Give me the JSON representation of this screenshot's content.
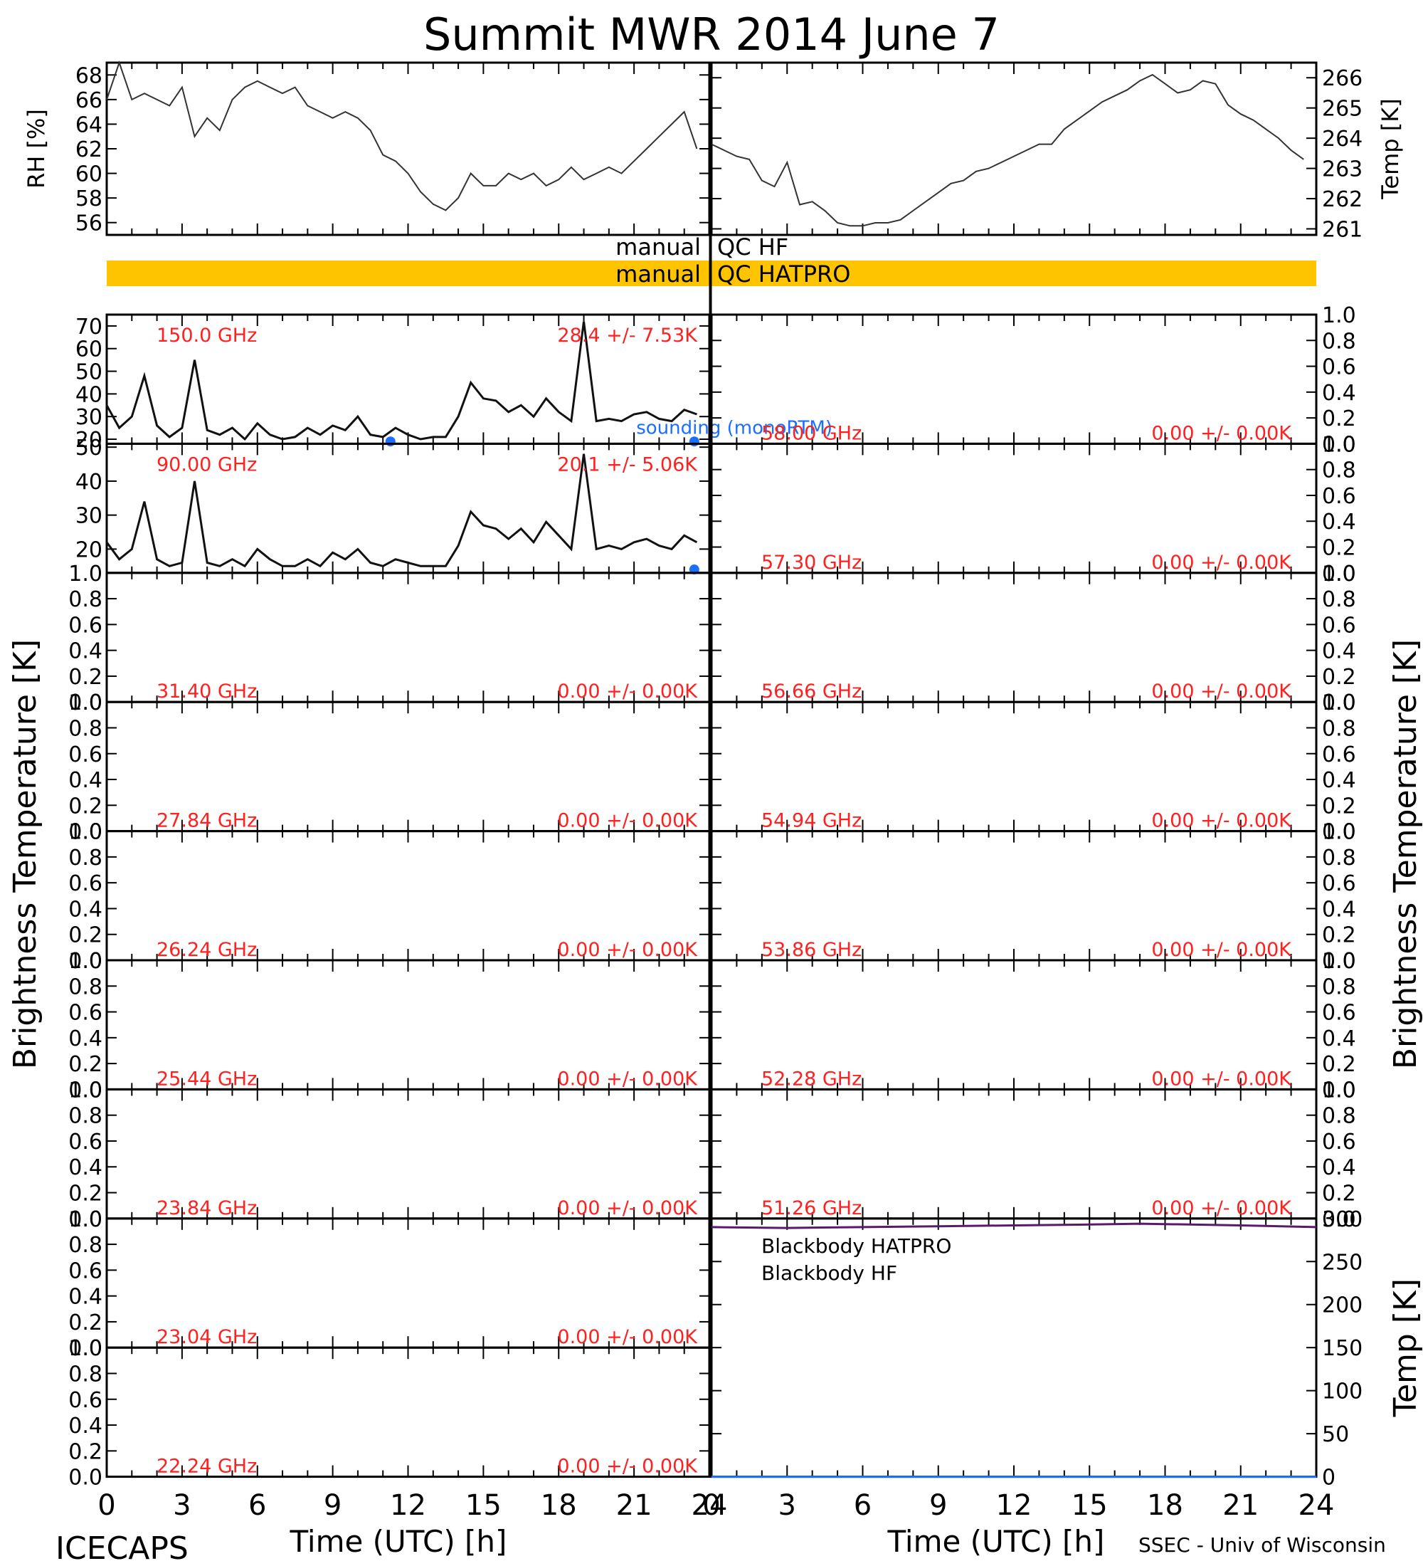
{
  "chart_data": {
    "title": "Summit MWR 2014 June  7",
    "footer_left": "ICECAPS",
    "footer_right": "SSEC - Univ of Wisconsin",
    "x_label": "Time (UTC) [h]",
    "x_ticks": [
      "0",
      "3",
      "6",
      "9",
      "12",
      "15",
      "18",
      "21",
      "24"
    ],
    "left_ylabel": "Brightness Temperature [K]",
    "right_ylabel": "Brightness Temperature [K]",
    "met": {
      "rh": {
        "type": "line",
        "ylabel": "RH [%]",
        "ylim": [
          55,
          69
        ],
        "yticks": [
          "56",
          "58",
          "60",
          "62",
          "64",
          "66",
          "68"
        ],
        "x": [
          0,
          0.5,
          1,
          1.5,
          2,
          2.5,
          3,
          3.5,
          4,
          4.5,
          5,
          5.5,
          6,
          6.5,
          7,
          7.5,
          8,
          8.5,
          9,
          9.5,
          10,
          10.5,
          11,
          11.5,
          12,
          12.5,
          13,
          13.5,
          14,
          14.5,
          15,
          15.5,
          16,
          16.5,
          17,
          17.5,
          18,
          18.5,
          19,
          19.5,
          20,
          20.5,
          21,
          21.5,
          22,
          22.5,
          23,
          23.5
        ],
        "y": [
          66,
          69,
          66,
          66.5,
          66,
          65.5,
          67,
          63,
          64.5,
          63.5,
          66,
          67,
          67.5,
          67,
          66.5,
          67,
          65.5,
          65,
          64.5,
          65,
          64.5,
          63.5,
          61.5,
          61,
          60,
          58.5,
          57.5,
          57,
          58,
          60,
          59,
          59,
          60,
          59.5,
          60,
          59,
          59.5,
          60.5,
          59.5,
          60,
          60.5,
          60,
          61,
          62,
          63,
          64,
          65,
          62
        ]
      },
      "temp": {
        "type": "line",
        "ylabel": "Temp [K]",
        "ylim": [
          260.8,
          266.5
        ],
        "yticks": [
          "261",
          "262",
          "263",
          "264",
          "265",
          "266"
        ],
        "x": [
          0,
          0.5,
          1,
          1.5,
          2,
          2.5,
          3,
          3.5,
          4,
          4.5,
          5,
          5.5,
          6,
          6.5,
          7,
          7.5,
          8,
          8.5,
          9,
          9.5,
          10,
          10.5,
          11,
          11.5,
          12,
          12.5,
          13,
          13.5,
          14,
          14.5,
          15,
          15.5,
          16,
          16.5,
          17,
          17.5,
          18,
          18.5,
          19,
          19.5,
          20,
          20.5,
          21,
          21.5,
          22,
          22.5,
          23,
          23.5
        ],
        "y": [
          263.8,
          263.6,
          263.4,
          263.3,
          262.6,
          262.4,
          263.2,
          261.8,
          261.9,
          261.6,
          261.2,
          261.1,
          261.1,
          261.2,
          261.2,
          261.3,
          261.6,
          261.9,
          262.2,
          262.5,
          262.6,
          262.9,
          263.0,
          263.2,
          263.4,
          263.6,
          263.8,
          263.8,
          264.3,
          264.6,
          264.9,
          265.2,
          265.4,
          265.6,
          265.9,
          266.1,
          265.8,
          265.5,
          265.6,
          265.9,
          265.8,
          265.1,
          264.8,
          264.6,
          264.3,
          264.0,
          263.6,
          263.3
        ]
      }
    },
    "qc": {
      "hf_label": "manual  QC HF",
      "hatpro_label": "manual  QC HATPRO",
      "hatpro_color": "#ffc400"
    },
    "channels_left": [
      {
        "freq": "150.0 GHz",
        "stats": "28.4 +/-  7.53K",
        "ylim": [
          18,
          75
        ],
        "yticks": [
          "20",
          "30",
          "40",
          "50",
          "60",
          "70"
        ],
        "has_data": true,
        "x": [
          0,
          0.5,
          1,
          1.5,
          2,
          2.5,
          3,
          3.5,
          4,
          4.5,
          5,
          5.5,
          6,
          6.5,
          7,
          7.5,
          8,
          8.5,
          9,
          9.5,
          10,
          10.5,
          11,
          11.5,
          12,
          12.5,
          13,
          13.5,
          14,
          14.5,
          15,
          15.5,
          16,
          16.5,
          17,
          17.5,
          18,
          18.5,
          19,
          19.5,
          20,
          20.5,
          21,
          21.5,
          22,
          22.5,
          23,
          23.5
        ],
        "y": [
          35,
          25,
          30,
          48,
          26,
          21,
          25,
          55,
          24,
          22,
          25,
          20,
          27,
          22,
          20,
          21,
          25,
          22,
          26,
          24,
          30,
          22,
          21,
          25,
          22,
          20,
          21,
          21,
          30,
          45,
          38,
          37,
          32,
          35,
          30,
          38,
          32,
          28,
          72,
          28,
          29,
          28,
          31,
          32,
          29,
          28,
          33,
          31
        ],
        "model_label": "sounding (monoRTM)",
        "model_x": [
          11.3,
          23.4
        ],
        "model_y": [
          19,
          19
        ]
      },
      {
        "freq": "90.00 GHz",
        "stats": "20.1 +/-  5.06K",
        "ylim": [
          13,
          51
        ],
        "yticks": [
          "20",
          "30",
          "40",
          "50"
        ],
        "has_data": true,
        "x": [
          0,
          0.5,
          1,
          1.5,
          2,
          2.5,
          3,
          3.5,
          4,
          4.5,
          5,
          5.5,
          6,
          6.5,
          7,
          7.5,
          8,
          8.5,
          9,
          9.5,
          10,
          10.5,
          11,
          11.5,
          12,
          12.5,
          13,
          13.5,
          14,
          14.5,
          15,
          15.5,
          16,
          16.5,
          17,
          17.5,
          18,
          18.5,
          19,
          19.5,
          20,
          20.5,
          21,
          21.5,
          22,
          22.5,
          23,
          23.5
        ],
        "y": [
          22,
          17,
          20,
          34,
          17,
          15,
          16,
          40,
          16,
          15,
          17,
          15,
          20,
          17,
          15,
          15,
          17,
          15,
          19,
          17,
          20,
          16,
          15,
          17,
          16,
          15,
          15,
          15,
          21,
          31,
          27,
          26,
          23,
          26,
          22,
          28,
          24,
          20,
          48,
          20,
          21,
          20,
          22,
          23,
          21,
          20,
          24,
          22
        ],
        "model_x": [
          23.4
        ],
        "model_y": [
          14
        ]
      },
      {
        "freq": "31.40 GHz",
        "stats": "0.00 +/-  0.00K",
        "ylim": [
          0,
          1
        ],
        "yticks": [
          "0.0",
          "0.2",
          "0.4",
          "0.6",
          "0.8",
          "1.0"
        ],
        "has_data": false
      },
      {
        "freq": "27.84 GHz",
        "stats": "0.00 +/-  0.00K",
        "ylim": [
          0,
          1
        ],
        "yticks": [
          "0.0",
          "0.2",
          "0.4",
          "0.6",
          "0.8",
          "1.0"
        ],
        "has_data": false
      },
      {
        "freq": "26.24 GHz",
        "stats": "0.00 +/-  0.00K",
        "ylim": [
          0,
          1
        ],
        "yticks": [
          "0.0",
          "0.2",
          "0.4",
          "0.6",
          "0.8",
          "1.0"
        ],
        "has_data": false
      },
      {
        "freq": "25.44 GHz",
        "stats": "0.00 +/-  0.00K",
        "ylim": [
          0,
          1
        ],
        "yticks": [
          "0.0",
          "0.2",
          "0.4",
          "0.6",
          "0.8",
          "1.0"
        ],
        "has_data": false
      },
      {
        "freq": "23.84 GHz",
        "stats": "0.00 +/-  0.00K",
        "ylim": [
          0,
          1
        ],
        "yticks": [
          "0.0",
          "0.2",
          "0.4",
          "0.6",
          "0.8",
          "1.0"
        ],
        "has_data": false
      },
      {
        "freq": "23.04 GHz",
        "stats": "0.00 +/-  0.00K",
        "ylim": [
          0,
          1
        ],
        "yticks": [
          "0.0",
          "0.2",
          "0.4",
          "0.6",
          "0.8",
          "1.0"
        ],
        "has_data": false
      },
      {
        "freq": "22.24 GHz",
        "stats": "0.00 +/-  0.00K",
        "ylim": [
          0,
          1
        ],
        "yticks": [
          "0.0",
          "0.2",
          "0.4",
          "0.6",
          "0.8",
          "1.0"
        ],
        "has_data": false
      }
    ],
    "channels_right": [
      {
        "freq": "58.00 GHz",
        "stats": "0.00 +/-  0.00K",
        "ylim": [
          0,
          1
        ],
        "yticks": [
          "0.0",
          "0.2",
          "0.4",
          "0.6",
          "0.8",
          "1.0"
        ]
      },
      {
        "freq": "57.30 GHz",
        "stats": "0.00 +/-  0.00K",
        "ylim": [
          0,
          1
        ],
        "yticks": [
          "0.0",
          "0.2",
          "0.4",
          "0.6",
          "0.8",
          "1.0"
        ]
      },
      {
        "freq": "56.66 GHz",
        "stats": "0.00 +/-  0.00K",
        "ylim": [
          0,
          1
        ],
        "yticks": [
          "0.0",
          "0.2",
          "0.4",
          "0.6",
          "0.8",
          "1.0"
        ]
      },
      {
        "freq": "54.94 GHz",
        "stats": "0.00 +/-  0.00K",
        "ylim": [
          0,
          1
        ],
        "yticks": [
          "0.0",
          "0.2",
          "0.4",
          "0.6",
          "0.8",
          "1.0"
        ]
      },
      {
        "freq": "53.86 GHz",
        "stats": "0.00 +/-  0.00K",
        "ylim": [
          0,
          1
        ],
        "yticks": [
          "0.0",
          "0.2",
          "0.4",
          "0.6",
          "0.8",
          "1.0"
        ]
      },
      {
        "freq": "52.28 GHz",
        "stats": "0.00 +/-  0.00K",
        "ylim": [
          0,
          1
        ],
        "yticks": [
          "0.0",
          "0.2",
          "0.4",
          "0.6",
          "0.8",
          "1.0"
        ]
      },
      {
        "freq": "51.26 GHz",
        "stats": "0.00 +/-  0.00K",
        "ylim": [
          0,
          1
        ],
        "yticks": [
          "0.0",
          "0.2",
          "0.4",
          "0.6",
          "0.8",
          "1.0"
        ]
      }
    ],
    "blackbody": {
      "type": "line",
      "ylabel": "Temp [K]",
      "ylim": [
        0,
        300
      ],
      "yticks": [
        "0",
        "50",
        "100",
        "150",
        "200",
        "250",
        "300"
      ],
      "series": [
        {
          "name": "Blackbody HATPRO",
          "color": "#1a6fff",
          "x": [
            0,
            24
          ],
          "y": [
            0,
            0
          ]
        },
        {
          "name": "Blackbody HF",
          "color": "#5a1a6a",
          "x": [
            0,
            3,
            6,
            9,
            12,
            15,
            17,
            19,
            21,
            24
          ],
          "y": [
            290,
            289,
            290,
            291,
            292,
            293,
            294,
            293,
            292,
            290
          ]
        }
      ]
    }
  }
}
